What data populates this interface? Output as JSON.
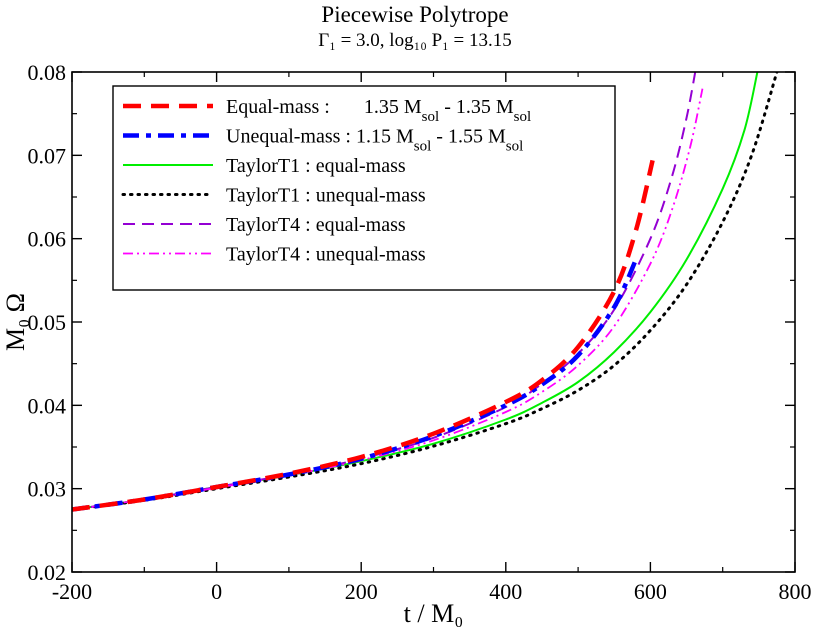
{
  "title": "Piecewise Polytrope",
  "subtitle": "Γ₁ = 3.0,  log₁₀ P₁ = 13.15",
  "chart_data": {
    "type": "line",
    "title": "Piecewise Polytrope",
    "subtitle": "Γ₁ = 3.0,  log₁₀ P₁ = 13.15",
    "xlabel": "t / M₀",
    "ylabel": "M₀ Ω",
    "xlim": [
      -200,
      800
    ],
    "ylim": [
      0.02,
      0.08
    ],
    "xticks": [
      -200,
      0,
      200,
      400,
      600,
      800
    ],
    "xtick_labels": [
      "-200",
      "0",
      "200",
      "400",
      "600",
      "800"
    ],
    "yticks": [
      0.02,
      0.03,
      0.04,
      0.05,
      0.06,
      0.07,
      0.08
    ],
    "ytick_labels": [
      "0.02",
      "0.03",
      "0.04",
      "0.05",
      "0.06",
      "0.07",
      "0.08"
    ],
    "grid": false,
    "legend_position": "top-left",
    "series": [
      {
        "name": "Equal-mass :      1.35 M_sol - 1.35 M_sol",
        "legend_parts": [
          "Equal-mass :",
          "1.35 M",
          "sol",
          " - 1.35 M",
          "sol"
        ],
        "color": "#ff0000",
        "style": "dashed-thick",
        "x": [
          -200,
          -100,
          0,
          100,
          200,
          300,
          400,
          450,
          500,
          550,
          580,
          603
        ],
        "y": [
          0.0275,
          0.0287,
          0.0302,
          0.0318,
          0.0338,
          0.0366,
          0.0404,
          0.043,
          0.047,
          0.0537,
          0.061,
          0.0694
        ]
      },
      {
        "name": "Unequal-mass : 1.15 M_sol - 1.55 M_sol",
        "legend_parts": [
          "Unequal-mass : 1.15 M",
          "sol",
          " - 1.55 M",
          "sol"
        ],
        "color": "#0000ff",
        "style": "dashdot-thick",
        "x": [
          -200,
          -100,
          0,
          100,
          200,
          300,
          400,
          450,
          500,
          550,
          580
        ],
        "y": [
          0.0275,
          0.0287,
          0.0302,
          0.0317,
          0.0336,
          0.0363,
          0.04,
          0.0425,
          0.046,
          0.0518,
          0.0575
        ]
      },
      {
        "name": "TaylorT1 : equal-mass",
        "color": "#00ee00",
        "style": "solid",
        "x": [
          -200,
          -100,
          0,
          100,
          200,
          300,
          400,
          450,
          500,
          550,
          600,
          650,
          700,
          730,
          748
        ],
        "y": [
          0.0275,
          0.0287,
          0.0302,
          0.0316,
          0.0333,
          0.0354,
          0.0383,
          0.0403,
          0.0428,
          0.0464,
          0.0512,
          0.0575,
          0.066,
          0.073,
          0.08
        ]
      },
      {
        "name": "TaylorT1 : unequal-mass",
        "color": "#000000",
        "style": "dotted",
        "x": [
          -200,
          -100,
          0,
          100,
          200,
          300,
          400,
          450,
          500,
          550,
          600,
          650,
          700,
          740,
          775
        ],
        "y": [
          0.0275,
          0.0286,
          0.03,
          0.0314,
          0.033,
          0.0351,
          0.0378,
          0.0396,
          0.0418,
          0.0448,
          0.049,
          0.0545,
          0.062,
          0.07,
          0.08
        ]
      },
      {
        "name": "TaylorT4 : equal-mass",
        "color": "#9400d3",
        "style": "dashed",
        "x": [
          -200,
          -100,
          0,
          100,
          200,
          300,
          400,
          450,
          500,
          550,
          600,
          630,
          650,
          662
        ],
        "y": [
          0.0275,
          0.0287,
          0.0302,
          0.0317,
          0.0336,
          0.0361,
          0.0398,
          0.0426,
          0.0462,
          0.0515,
          0.06,
          0.0675,
          0.0745,
          0.08
        ]
      },
      {
        "name": "TaylorT4 : unequal-mass",
        "color": "#ff00ff",
        "style": "dashdotdot",
        "x": [
          -200,
          -100,
          0,
          100,
          200,
          300,
          400,
          450,
          500,
          550,
          600,
          630,
          655,
          672
        ],
        "y": [
          0.0275,
          0.0287,
          0.0301,
          0.0316,
          0.0334,
          0.0358,
          0.0392,
          0.0416,
          0.0448,
          0.0495,
          0.057,
          0.0635,
          0.071,
          0.078
        ]
      }
    ]
  }
}
